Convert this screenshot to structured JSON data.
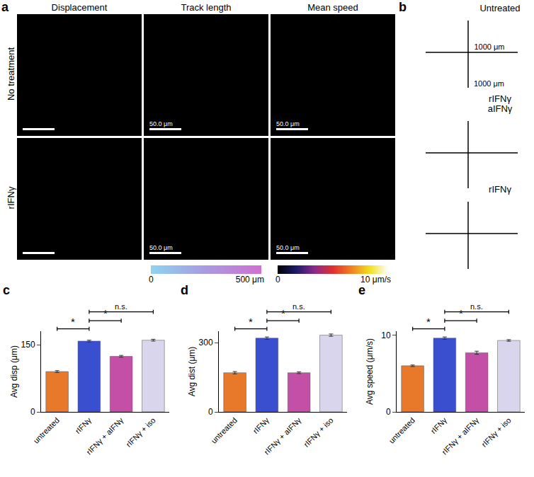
{
  "panel_a": {
    "label": "a",
    "columns": [
      "Displacement",
      "Track length",
      "Mean speed"
    ],
    "rows": [
      "No treatment",
      "rIFNγ"
    ],
    "scale_bar": "50.0 μm",
    "colorbars": [
      {
        "min_label": "0",
        "max_label": "500 μm"
      },
      {
        "min_label": "0",
        "max_label": "10 μm/s"
      }
    ]
  },
  "panel_b": {
    "label": "b",
    "axis_label": "1000 μm",
    "plots": [
      [
        "Untreated"
      ],
      [
        "rIFNγ",
        "aIFNγ"
      ],
      [
        "rIFNγ"
      ]
    ]
  },
  "chart_data": [
    {
      "label": "c",
      "type": "bar",
      "y_label": "Avg disp (μm)",
      "categories": [
        "untreated",
        "rIFNγ",
        "rIFNγ + aIFNγ",
        "rIFNγ + iso"
      ],
      "values": [
        90,
        158,
        124,
        160
      ],
      "errors": [
        2,
        2,
        2,
        2
      ],
      "colors": [
        "#e8782a",
        "#3a4fd0",
        "#c44fa6",
        "#d9d5ec"
      ],
      "ylim": [
        0,
        180
      ],
      "yticks": [
        0,
        150
      ],
      "significance": [
        {
          "from": 0,
          "to": 1,
          "label": "*"
        },
        {
          "from": 1,
          "to": 2,
          "label": "*"
        },
        {
          "from": 1,
          "to": 3,
          "label": "n.s."
        }
      ]
    },
    {
      "label": "d",
      "type": "bar",
      "y_label": "Avg dist (μm)",
      "categories": [
        "untreated",
        "rIFNγ",
        "rIFNγ + aIFNγ",
        "rIFNγ + iso"
      ],
      "values": [
        170,
        320,
        170,
        333
      ],
      "errors": [
        5,
        5,
        4,
        5
      ],
      "colors": [
        "#e8782a",
        "#3a4fd0",
        "#c44fa6",
        "#d9d5ec"
      ],
      "ylim": [
        0,
        350
      ],
      "yticks": [
        0,
        300
      ],
      "significance": [
        {
          "from": 0,
          "to": 1,
          "label": "*"
        },
        {
          "from": 1,
          "to": 2,
          "label": "*"
        },
        {
          "from": 1,
          "to": 3,
          "label": "n.s."
        }
      ]
    },
    {
      "label": "e",
      "type": "bar",
      "y_label": "Avg speed (μm/s)",
      "categories": [
        "untreated",
        "rIFNγ",
        "rIFNγ + aIFNγ",
        "rIFNγ + iso"
      ],
      "values": [
        6.0,
        9.6,
        7.7,
        9.3
      ],
      "errors": [
        0.1,
        0.15,
        0.2,
        0.1
      ],
      "colors": [
        "#e8782a",
        "#3a4fd0",
        "#c44fa6",
        "#d9d5ec"
      ],
      "ylim": [
        0,
        10.5
      ],
      "yticks": [
        0,
        10
      ],
      "significance": [
        {
          "from": 0,
          "to": 1,
          "label": "*"
        },
        {
          "from": 1,
          "to": 2,
          "label": "*"
        },
        {
          "from": 1,
          "to": 3,
          "label": "n.s."
        }
      ]
    }
  ]
}
